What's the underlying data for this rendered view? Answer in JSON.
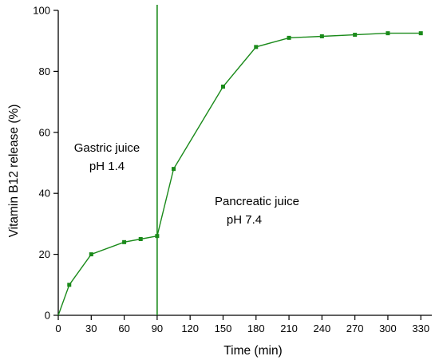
{
  "chart_data": {
    "type": "line",
    "title": "",
    "xlabel": "Time (min)",
    "ylabel": "Vitamin B12 release (%)",
    "xlim": [
      0,
      340
    ],
    "ylim": [
      0,
      100
    ],
    "xticks": [
      0,
      30,
      60,
      90,
      120,
      150,
      180,
      210,
      240,
      270,
      300,
      330
    ],
    "yticks": [
      0,
      20,
      40,
      60,
      80,
      100
    ],
    "grid": false,
    "legend": "none",
    "series": [
      {
        "color": "#1a8a1a",
        "marker": "square",
        "x": [
          0,
          10,
          30,
          60,
          75,
          90,
          105,
          150,
          180,
          210,
          240,
          270,
          300,
          330
        ],
        "y": [
          0,
          10,
          20,
          24,
          25,
          26,
          48,
          75,
          88,
          91,
          91.5,
          92,
          92.5,
          92.5
        ]
      }
    ],
    "divider": {
      "x": 90,
      "color": "#1a8a1a"
    },
    "annotations": {
      "gastric_line1": "Gastric juice",
      "gastric_line2": "pH 1.4",
      "pancreatic_line1": "Pancreatic juice",
      "pancreatic_line2": "pH 7.4"
    }
  }
}
